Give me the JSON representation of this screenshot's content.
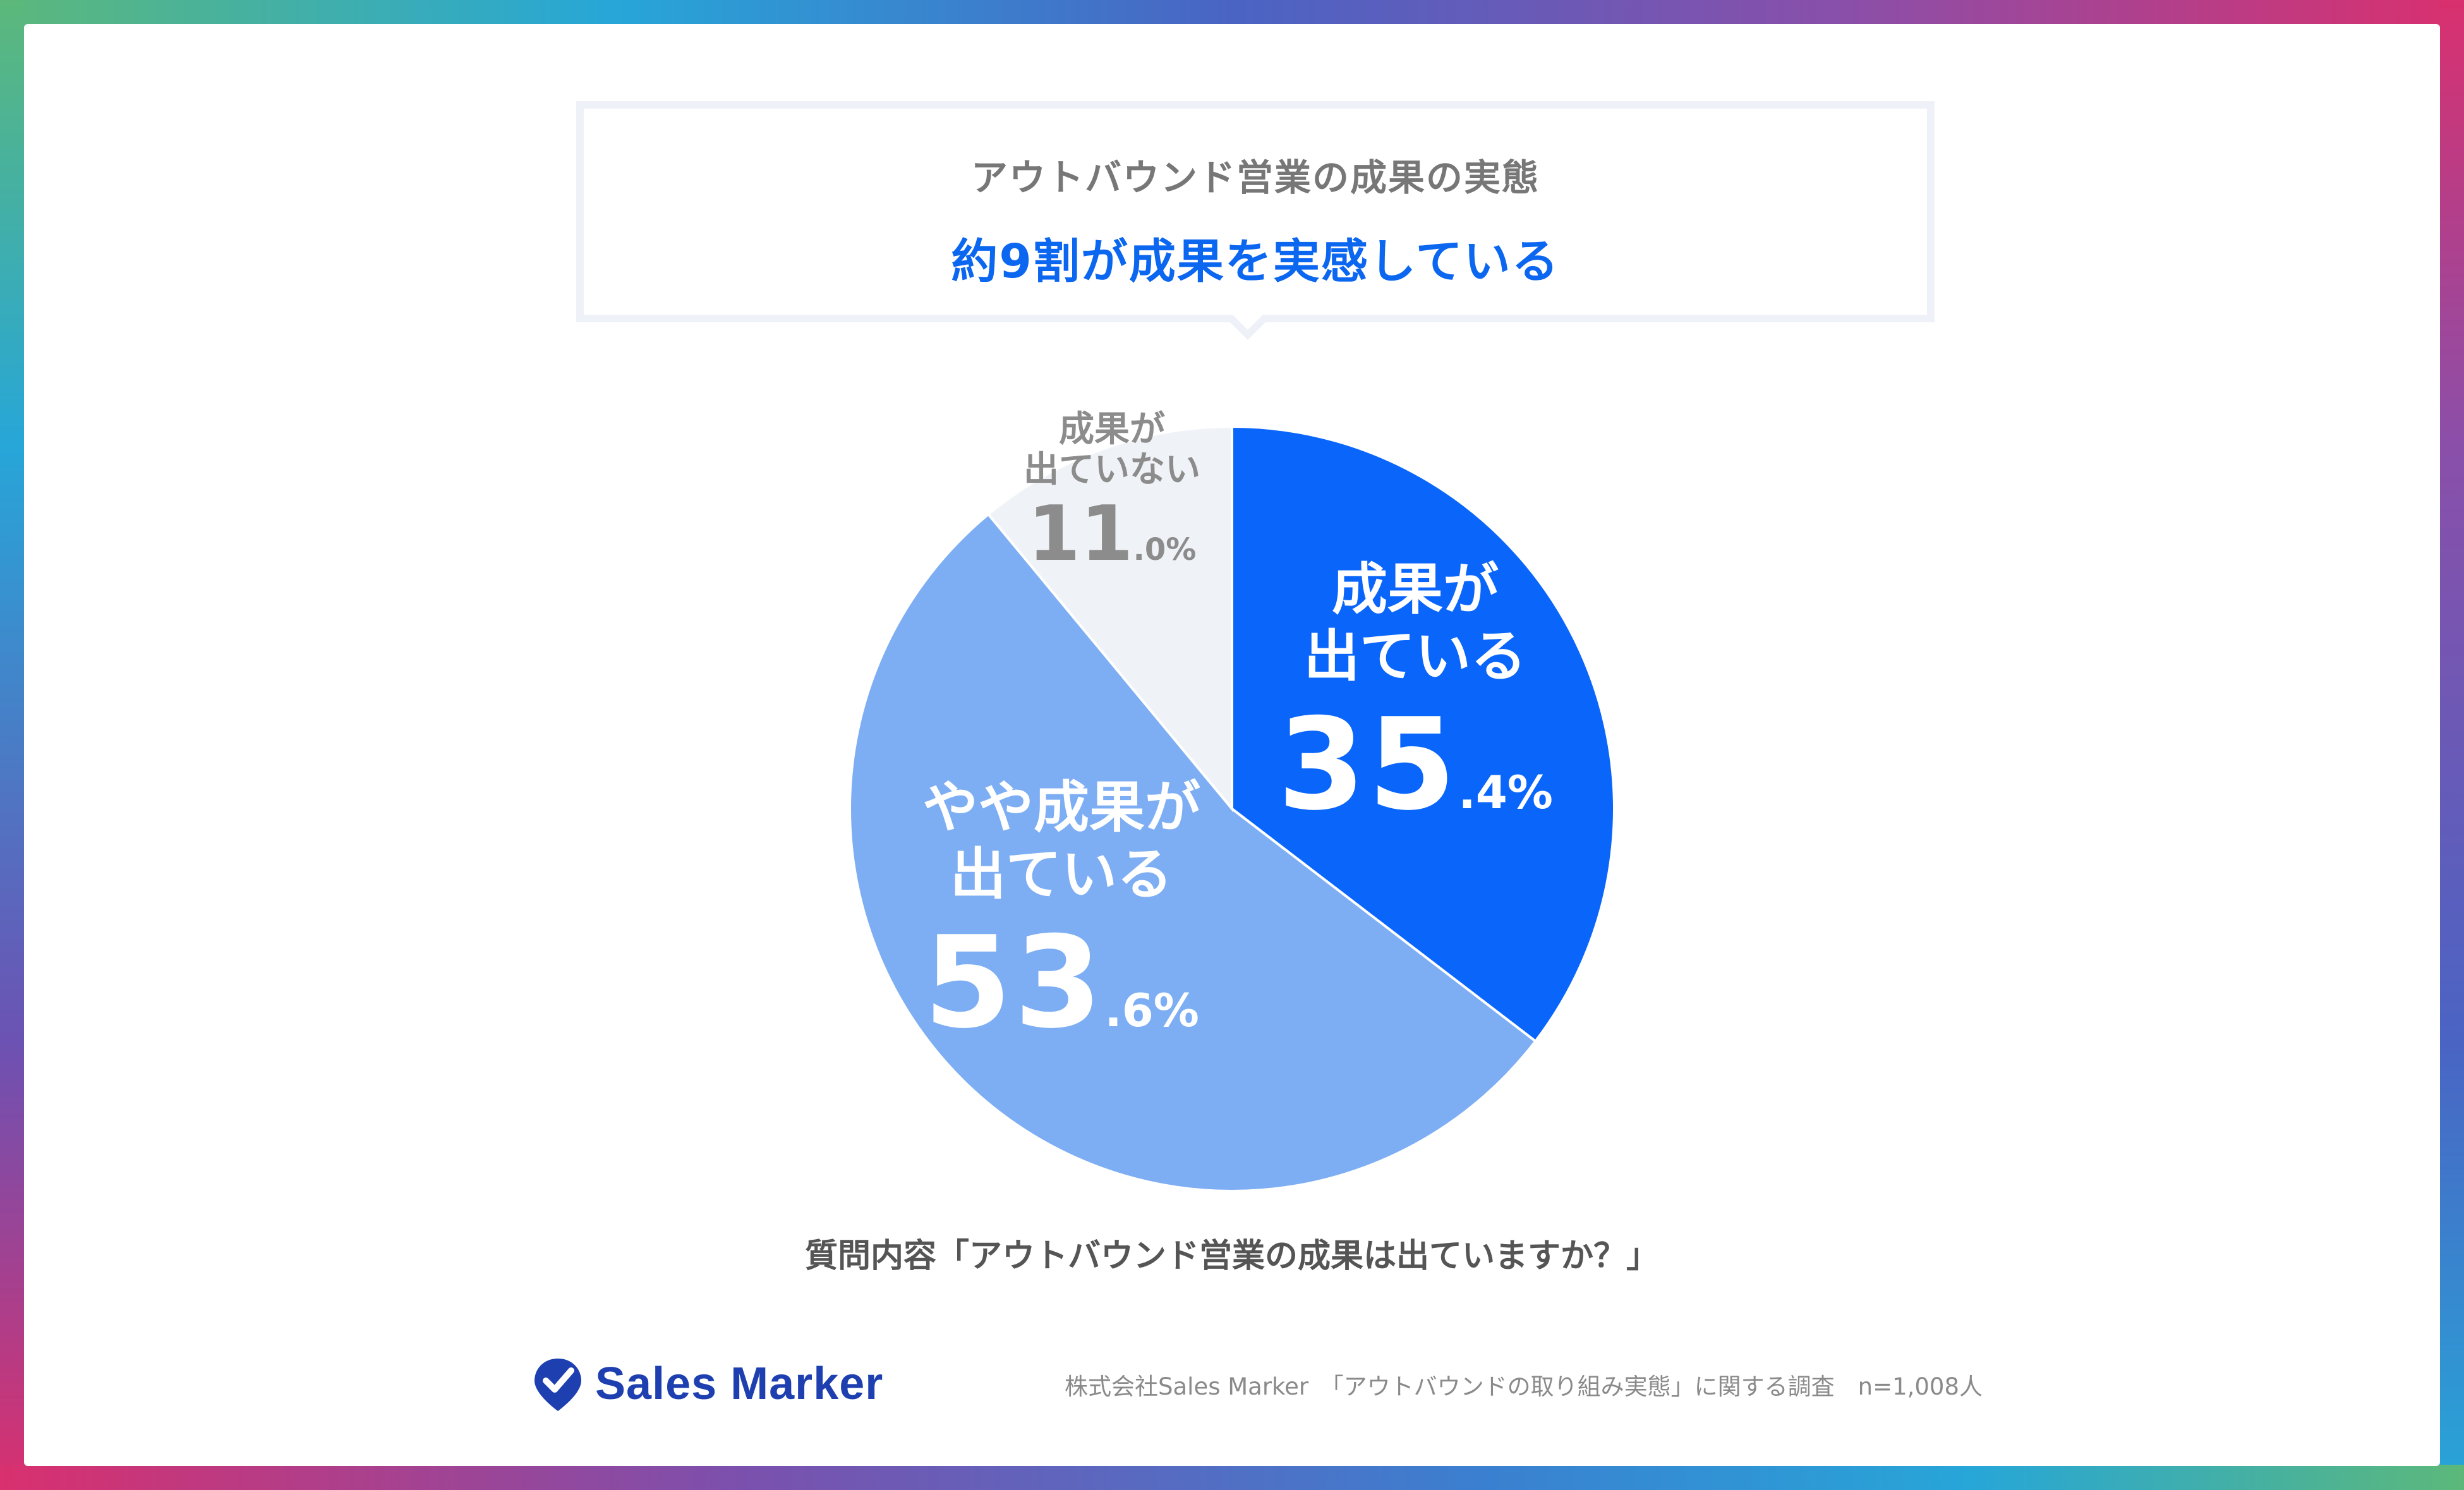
{
  "header": {
    "subtitle": "アウトバウンド営業の成果の実態",
    "title": "約9割が成果を実感している"
  },
  "chart_data": {
    "type": "pie",
    "slices": [
      {
        "label_line1": "成果が",
        "label_line2": "出ている",
        "int": "35",
        "dec": ".4%",
        "value": 35.4,
        "color": "#0a66fb",
        "text_color": "#ffffff"
      },
      {
        "label_line1": "やや成果が",
        "label_line2": "出ている",
        "int": "53",
        "dec": ".6%",
        "value": 53.6,
        "color": "#7daef4",
        "text_color": "#ffffff"
      },
      {
        "label_line1": "成果が",
        "label_line2": "出ていない",
        "int": "11",
        "dec": ".0%",
        "value": 11.0,
        "color": "#eff2f7",
        "text_color": "#8c8c8c"
      }
    ]
  },
  "question": "質問内容「アウトバウンド営業の成果は出ていますか？」",
  "logo": {
    "text": "Sales Marker",
    "color": "#1e3fb0"
  },
  "footer": "株式会社Sales Marker　「アウトバウンドの取り組み実態」に関する調査　n=1,008人"
}
